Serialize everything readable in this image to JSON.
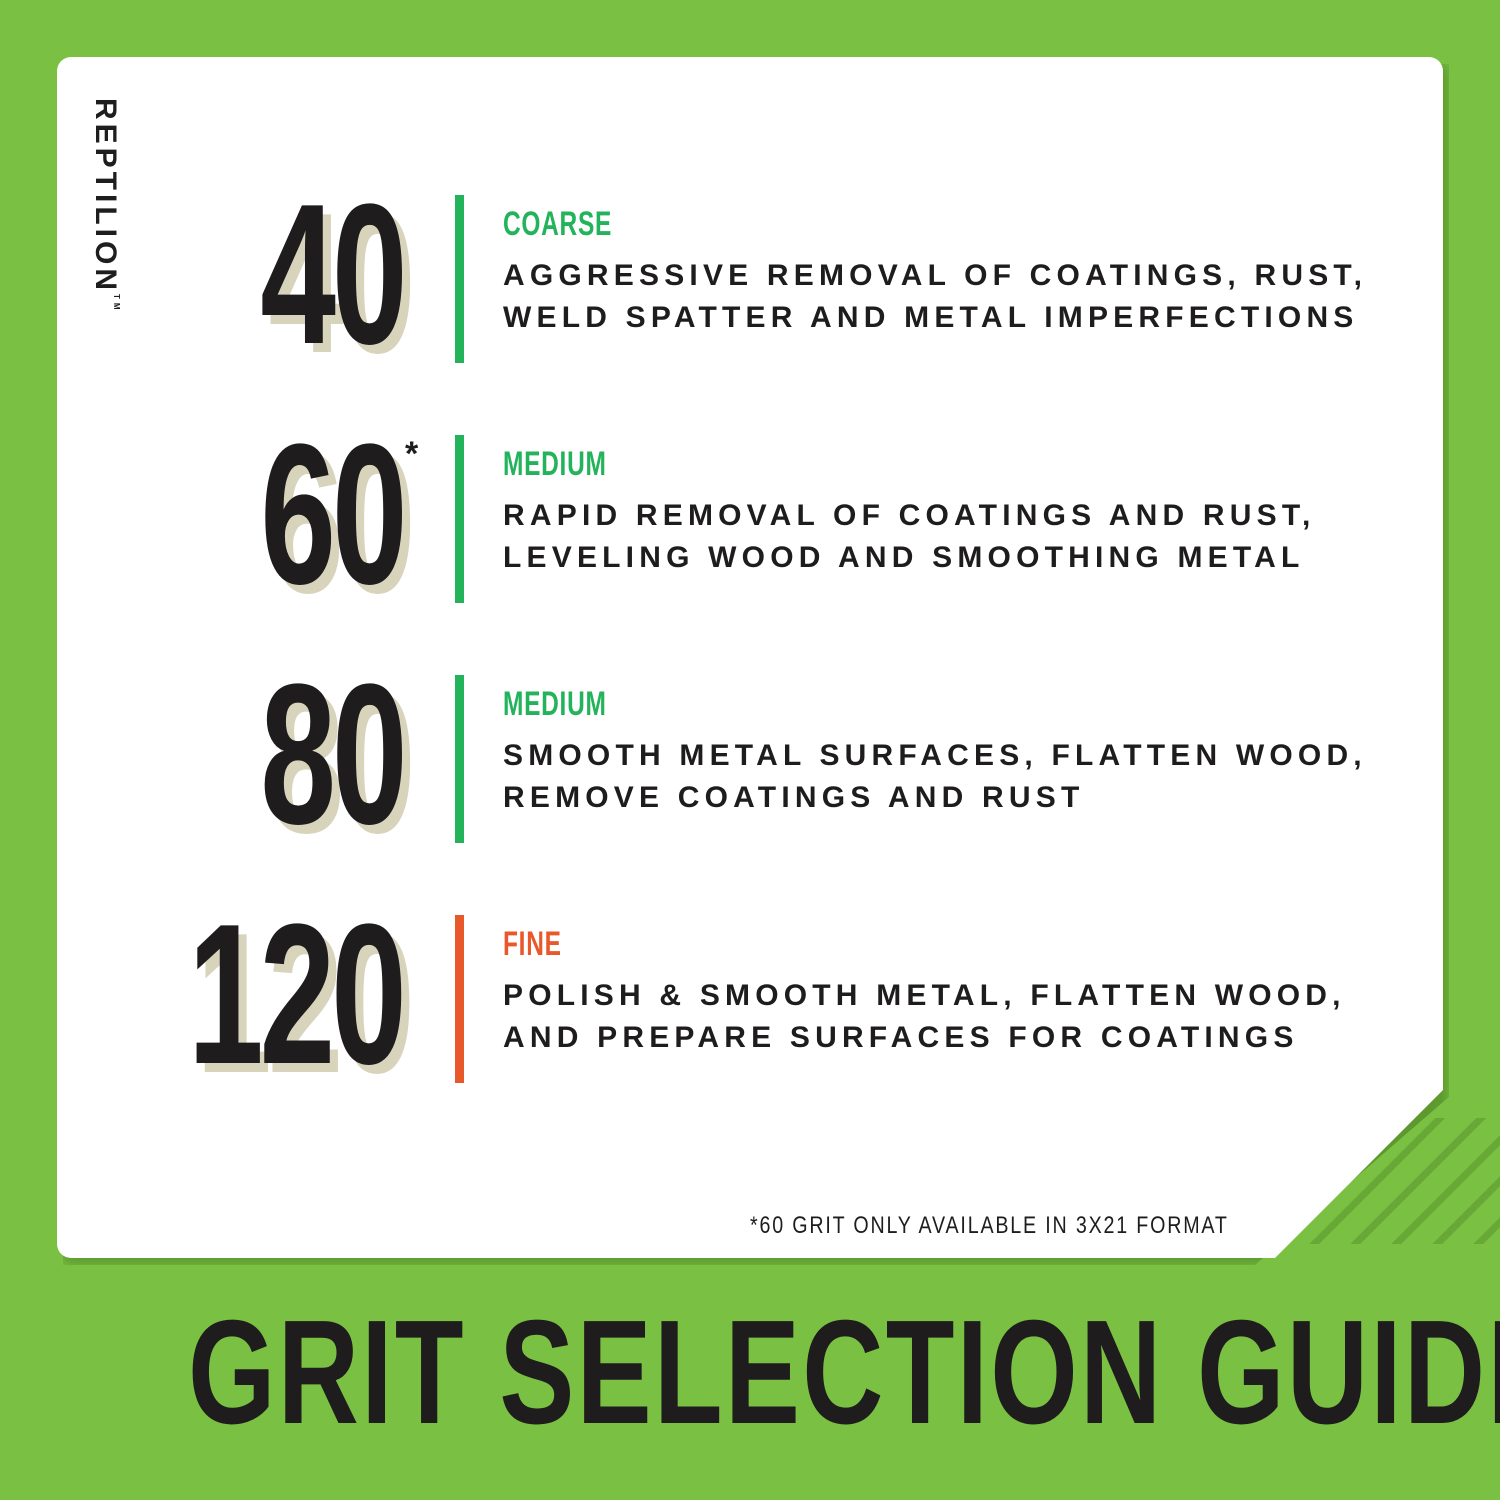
{
  "brand": "REPTILION",
  "brand_mark": "TM",
  "colors": {
    "background": "#7ac143",
    "medium_green": "#23b35b",
    "fine_orange": "#e8582a",
    "number_shadow": "#d8d4bc"
  },
  "grits": [
    {
      "number": "40",
      "asterisk": "",
      "grade": "COARSE",
      "grade_color": "#23b35b",
      "lines": [
        "AGGRESSIVE REMOVAL OF COATINGS, RUST,",
        "WELD SPATTER AND METAL IMPERFECTIONS"
      ]
    },
    {
      "number": "60",
      "asterisk": "*",
      "grade": "MEDIUM",
      "grade_color": "#23b35b",
      "lines": [
        "RAPID REMOVAL OF COATINGS AND RUST,",
        "LEVELING WOOD AND SMOOTHING METAL"
      ]
    },
    {
      "number": "80",
      "asterisk": "",
      "grade": "MEDIUM",
      "grade_color": "#23b35b",
      "lines": [
        "SMOOTH METAL SURFACES, FLATTEN WOOD,",
        "REMOVE COATINGS AND RUST"
      ]
    },
    {
      "number": "120",
      "asterisk": "",
      "grade": "FINE",
      "grade_color": "#e8582a",
      "lines": [
        "POLISH & SMOOTH METAL, FLATTEN WOOD,",
        "AND PREPARE SURFACES FOR COATINGS"
      ]
    }
  ],
  "footnote": "*60 GRIT ONLY AVAILABLE IN 3X21 FORMAT",
  "title": "GRIT SELECTION GUIDE"
}
